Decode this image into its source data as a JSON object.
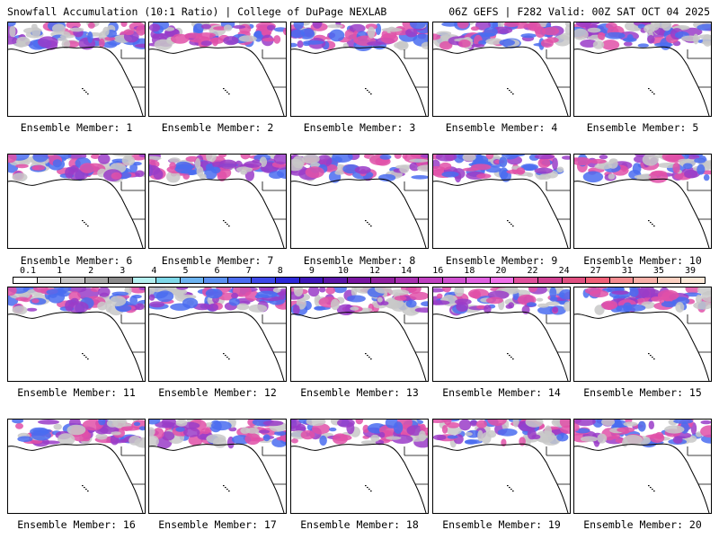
{
  "header": {
    "left_title": "Snowfall Accumulation (10:1 Ratio) | College of DuPage NEXLAB",
    "right_title": "06Z GEFS | F282 Valid: 00Z SAT OCT 04 2025"
  },
  "panels": [
    {
      "label": "Ensemble Member: 1"
    },
    {
      "label": "Ensemble Member: 2"
    },
    {
      "label": "Ensemble Member: 3"
    },
    {
      "label": "Ensemble Member: 4"
    },
    {
      "label": "Ensemble Member: 5"
    },
    {
      "label": "Ensemble Member: 6"
    },
    {
      "label": "Ensemble Member: 7"
    },
    {
      "label": "Ensemble Member: 8"
    },
    {
      "label": "Ensemble Member: 9"
    },
    {
      "label": "Ensemble Member: 10"
    },
    {
      "label": "Ensemble Member: 11"
    },
    {
      "label": "Ensemble Member: 12"
    },
    {
      "label": "Ensemble Member: 13"
    },
    {
      "label": "Ensemble Member: 14"
    },
    {
      "label": "Ensemble Member: 15"
    },
    {
      "label": "Ensemble Member: 16"
    },
    {
      "label": "Ensemble Member: 17"
    },
    {
      "label": "Ensemble Member: 18"
    },
    {
      "label": "Ensemble Member: 19"
    },
    {
      "label": "Ensemble Member: 20"
    }
  ],
  "colorbar": {
    "labels": [
      "0.1",
      "1",
      "2",
      "3",
      "4",
      "5",
      "6",
      "7",
      "8",
      "9",
      "10",
      "12",
      "14",
      "16",
      "18",
      "20",
      "22",
      "24",
      "27",
      "31",
      "35",
      "39"
    ],
    "colors": [
      "#ffffff",
      "#e6e6e6",
      "#c8c8c8",
      "#a8a8a8",
      "#8c8c8c",
      "#b4f0f0",
      "#7ed8e8",
      "#6cb4f0",
      "#5a90f0",
      "#4a6cf0",
      "#3c48e8",
      "#2c28d8",
      "#3c14b8",
      "#5a14a8",
      "#7814a0",
      "#9020a0",
      "#a830b0",
      "#c040c0",
      "#d050d0",
      "#e060e0",
      "#f070e8",
      "#e0509c",
      "#d04090",
      "#e05080",
      "#f06078",
      "#f48c90",
      "#f8b0a8",
      "#fcd0c0",
      "#fde8d8"
    ]
  },
  "palette": {
    "snow_light": "#c8c8c8",
    "snow_blue": "#4a6cf0",
    "snow_purple": "#9a3cc8",
    "snow_pink": "#e050a8"
  }
}
